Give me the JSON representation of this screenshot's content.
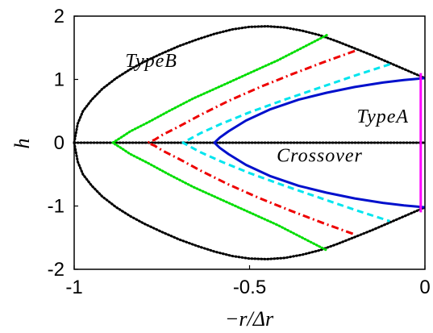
{
  "chart_data": {
    "type": "line",
    "xlabel": "−r/Δr",
    "ylabel": "h",
    "xlim": [
      -1,
      0
    ],
    "ylim": [
      -2,
      2
    ],
    "xticks": [
      {
        "value": -1,
        "label": "-1"
      },
      {
        "value": -0.5,
        "label": "-0.5"
      },
      {
        "value": 0,
        "label": "0"
      }
    ],
    "yticks": [
      {
        "value": -2,
        "label": "-2"
      },
      {
        "value": -1,
        "label": "-1"
      },
      {
        "value": 0,
        "label": "0"
      },
      {
        "value": 1,
        "label": "1"
      },
      {
        "value": 2,
        "label": "2"
      }
    ],
    "grid": false,
    "annotations": [
      {
        "text": "TypeB",
        "x": -0.78,
        "y": 1.3
      },
      {
        "text": "TypeA",
        "x": -0.12,
        "y": 0.42
      },
      {
        "text": "Crossover",
        "x": -0.3,
        "y": -0.2
      }
    ],
    "series": [
      {
        "color": "#000000",
        "style": "dotted",
        "width": 3,
        "x": [
          -1,
          -0.99,
          -0.975,
          -0.95,
          -0.92,
          -0.88,
          -0.84,
          -0.8,
          -0.75,
          -0.7,
          -0.65,
          -0.6,
          -0.55,
          -0.5,
          -0.45,
          -0.4,
          -0.35,
          -0.3,
          -0.25,
          -0.2,
          -0.15,
          -0.1,
          -0.05,
          0
        ],
        "y": [
          0,
          0.3,
          0.5,
          0.68,
          0.85,
          1.02,
          1.16,
          1.28,
          1.41,
          1.53,
          1.63,
          1.72,
          1.79,
          1.83,
          1.84,
          1.82,
          1.77,
          1.7,
          1.6,
          1.49,
          1.38,
          1.26,
          1.14,
          1.02
        ]
      },
      {
        "color": "#000000",
        "style": "dotted",
        "width": 3,
        "x": [
          -1,
          -0.99,
          -0.975,
          -0.95,
          -0.92,
          -0.88,
          -0.84,
          -0.8,
          -0.75,
          -0.7,
          -0.65,
          -0.6,
          -0.55,
          -0.5,
          -0.45,
          -0.4,
          -0.35,
          -0.3,
          -0.25,
          -0.2,
          -0.15,
          -0.1,
          -0.05,
          0
        ],
        "y": [
          0,
          -0.3,
          -0.5,
          -0.68,
          -0.85,
          -1.02,
          -1.16,
          -1.28,
          -1.41,
          -1.53,
          -1.63,
          -1.72,
          -1.79,
          -1.83,
          -1.84,
          -1.82,
          -1.77,
          -1.7,
          -1.6,
          -1.49,
          -1.38,
          -1.26,
          -1.14,
          -1.02
        ]
      },
      {
        "color": "#000000",
        "style": "dotted",
        "width": 3,
        "x": [
          -1,
          0
        ],
        "y": [
          0,
          0
        ]
      },
      {
        "color": "#00dd00",
        "style": "dotted",
        "width": 3,
        "x": [
          -0.28,
          -0.35,
          -0.42,
          -0.5,
          -0.58,
          -0.66,
          -0.73,
          -0.79,
          -0.84,
          -0.87,
          -0.89,
          -0.87,
          -0.84,
          -0.79,
          -0.73,
          -0.66,
          -0.58,
          -0.5,
          -0.42,
          -0.35,
          -0.28
        ],
        "y": [
          1.7,
          1.5,
          1.3,
          1.1,
          0.9,
          0.7,
          0.5,
          0.32,
          0.18,
          0.07,
          0,
          -0.07,
          -0.18,
          -0.32,
          -0.5,
          -0.7,
          -0.9,
          -1.1,
          -1.3,
          -1.5,
          -1.7
        ]
      },
      {
        "color": "#ee0000",
        "style": "dashdot",
        "width": 3,
        "x": [
          -0.2,
          -0.29,
          -0.38,
          -0.47,
          -0.56,
          -0.64,
          -0.7,
          -0.75,
          -0.77,
          -0.79,
          -0.77,
          -0.75,
          -0.7,
          -0.64,
          -0.56,
          -0.47,
          -0.38,
          -0.29,
          -0.2
        ],
        "y": [
          1.45,
          1.27,
          1.08,
          0.88,
          0.66,
          0.44,
          0.26,
          0.12,
          0.05,
          0,
          -0.05,
          -0.12,
          -0.26,
          -0.44,
          -0.66,
          -0.88,
          -1.08,
          -1.27,
          -1.45
        ]
      },
      {
        "color": "#00e5ee",
        "style": "dashed",
        "width": 3,
        "x": [
          -0.1,
          -0.2,
          -0.3,
          -0.4,
          -0.5,
          -0.58,
          -0.64,
          -0.67,
          -0.69,
          -0.67,
          -0.64,
          -0.58,
          -0.5,
          -0.4,
          -0.3,
          -0.2,
          -0.1
        ],
        "y": [
          1.24,
          1.06,
          0.87,
          0.68,
          0.48,
          0.3,
          0.15,
          0.06,
          0,
          -0.06,
          -0.15,
          -0.3,
          -0.48,
          -0.68,
          -0.87,
          -1.06,
          -1.24
        ]
      },
      {
        "color": "#0010cc",
        "style": "solid",
        "width": 3,
        "x": [
          0,
          -0.06,
          -0.12,
          -0.2,
          -0.28,
          -0.36,
          -0.44,
          -0.51,
          -0.56,
          -0.585,
          -0.6,
          -0.585,
          -0.56,
          -0.51,
          -0.44,
          -0.36,
          -0.28,
          -0.2,
          -0.12,
          -0.06,
          0
        ],
        "y": [
          1.02,
          0.99,
          0.95,
          0.88,
          0.79,
          0.68,
          0.53,
          0.35,
          0.18,
          0.08,
          0,
          -0.08,
          -0.18,
          -0.35,
          -0.53,
          -0.68,
          -0.79,
          -0.88,
          -0.95,
          -0.99,
          -1.02
        ]
      },
      {
        "color": "#ff00ff",
        "style": "solid",
        "width": 3,
        "x": [
          -0.012,
          -0.012
        ],
        "y": [
          1.1,
          -1.1
        ]
      }
    ]
  }
}
